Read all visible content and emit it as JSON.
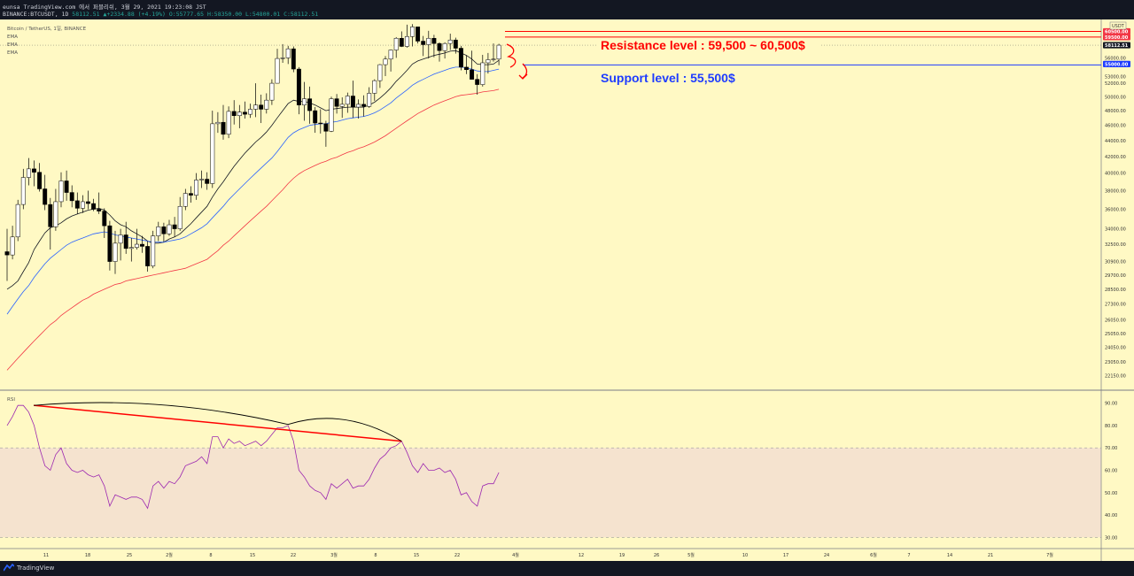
{
  "header": {
    "publisher": "eunsa TradingView.com 에서 퍼블리쉬, 3월 29, 2021 19:23:08 JST",
    "symbol": "BINANCE:BTCUSDT, 1D",
    "last": "58112.51",
    "change": "▲+2334.88 (+4.19%)",
    "ohlc": {
      "o": "O:55777.65",
      "h": "H:58350.00",
      "l": "L:54800.01",
      "c": "C:58112.51"
    }
  },
  "footer": {
    "brand": "TradingView"
  },
  "chart_data": [
    {
      "type": "line",
      "legend": [
        "Bitcoin / TetherUS, 1일, BINANCE",
        "EMA",
        "EMA",
        "EMA"
      ],
      "currency": "USDT",
      "ylim": [
        21500,
        62000
      ],
      "yticks": [
        "60500.00",
        "59500.00",
        "58112.51",
        "56000.00",
        "55000.00",
        "53000.00",
        "52000.00",
        "50000.00",
        "48000.00",
        "46000.00",
        "44000.00",
        "42000.00",
        "40000.00",
        "38000.00",
        "36000.00",
        "34000.00",
        "32500.00",
        "30900.00",
        "29700.00",
        "28500.00",
        "27300.00",
        "26050.00",
        "25050.00",
        "24050.00",
        "23050.00",
        "22150.00"
      ],
      "highlighted_ticks": [
        {
          "label": "60500.00",
          "value": 60500,
          "color": "#f23645"
        },
        {
          "label": "59500.00",
          "value": 59500,
          "color": "#f23645"
        },
        {
          "label": "58112.51",
          "value": 58112.51,
          "color": "#131722"
        },
        {
          "label": "55000.00",
          "value": 55000,
          "color": "#1e3cff"
        }
      ],
      "xticks": [
        "11",
        "18",
        "25",
        "2월",
        "8",
        "15",
        "22",
        "3월",
        "8",
        "15",
        "22",
        "4월",
        "12",
        "19",
        "26",
        "5월",
        "10",
        "17",
        "24",
        "6월",
        "7",
        "14",
        "21",
        "7월"
      ],
      "candles": [
        [
          31800,
          31500,
          34000,
          29200
        ],
        [
          31500,
          33200,
          34300,
          31100
        ],
        [
          33200,
          36500,
          37000,
          32800
        ],
        [
          36500,
          39500,
          40500,
          36000
        ],
        [
          39500,
          40500,
          41800,
          38600
        ],
        [
          40500,
          40100,
          41500,
          38500
        ],
        [
          40100,
          38200,
          41200,
          37900
        ],
        [
          38200,
          36500,
          39800,
          35900
        ],
        [
          36500,
          34200,
          37200,
          32000
        ],
        [
          34200,
          36800,
          38200,
          33800
        ],
        [
          36800,
          39100,
          40100,
          36200
        ],
        [
          39100,
          37800,
          40300,
          36900
        ],
        [
          37800,
          36900,
          38600,
          36200
        ],
        [
          36900,
          36100,
          37800,
          35500
        ],
        [
          36100,
          36800,
          37500,
          35600
        ],
        [
          36800,
          36600,
          38000,
          36000
        ],
        [
          36600,
          36000,
          37100,
          35800
        ],
        [
          36000,
          35800,
          37800,
          35500
        ],
        [
          35800,
          34300,
          36100,
          33100
        ],
        [
          34300,
          30900,
          34800,
          30100
        ],
        [
          30900,
          32600,
          33800,
          29800
        ],
        [
          32600,
          33400,
          34000,
          31000
        ],
        [
          33400,
          32100,
          34700,
          31600
        ],
        [
          32100,
          32200,
          33100,
          30900
        ],
        [
          32200,
          32500,
          34000,
          32000
        ],
        [
          32500,
          32300,
          33300,
          31700
        ],
        [
          32300,
          30500,
          32800,
          30000
        ],
        [
          30500,
          33300,
          33800,
          30300
        ],
        [
          33300,
          34200,
          34700,
          32800
        ],
        [
          34200,
          33500,
          34600,
          32700
        ],
        [
          33500,
          34400,
          34900,
          33300
        ],
        [
          34400,
          34000,
          35200,
          33200
        ],
        [
          34000,
          36300,
          37300,
          33800
        ],
        [
          36300,
          37700,
          38200,
          35900
        ],
        [
          37700,
          37500,
          38500,
          36700
        ],
        [
          37500,
          39200,
          40000,
          37000
        ],
        [
          39200,
          39300,
          40300,
          38300
        ],
        [
          39300,
          38800,
          40100,
          38100
        ],
        [
          38800,
          46200,
          48000,
          38300
        ],
        [
          46200,
          46400,
          47800,
          45000
        ],
        [
          46400,
          44800,
          48800,
          44100
        ],
        [
          44800,
          47900,
          48600,
          44300
        ],
        [
          47900,
          47300,
          49500,
          46100
        ],
        [
          47300,
          47800,
          48800,
          45600
        ],
        [
          47800,
          47500,
          49300,
          46900
        ],
        [
          47500,
          48200,
          49000,
          47000
        ],
        [
          48200,
          48800,
          52000,
          47100
        ],
        [
          48800,
          48200,
          50300,
          46300
        ],
        [
          48200,
          49500,
          50500,
          47600
        ],
        [
          49500,
          52000,
          52600,
          48800
        ],
        [
          52000,
          55900,
          57500,
          52000
        ],
        [
          55900,
          56000,
          58300,
          55200
        ],
        [
          56000,
          57500,
          58000,
          55000
        ],
        [
          57500,
          54200,
          57900,
          53700
        ],
        [
          54200,
          48800,
          54500,
          47500
        ],
        [
          48800,
          49700,
          52200,
          46600
        ],
        [
          49700,
          48000,
          51500,
          46200
        ],
        [
          48000,
          46300,
          48500,
          45000
        ],
        [
          46300,
          46200,
          48200,
          44900
        ],
        [
          46200,
          45200,
          46600,
          43200
        ],
        [
          45200,
          49700,
          50000,
          45100
        ],
        [
          49700,
          48600,
          50400,
          47600
        ],
        [
          48600,
          48900,
          49900,
          47000
        ],
        [
          48900,
          50100,
          50600,
          47700
        ],
        [
          50100,
          48500,
          52400,
          47000
        ],
        [
          48500,
          48900,
          49600,
          46900
        ],
        [
          48900,
          48600,
          50200,
          47200
        ],
        [
          48600,
          50500,
          51400,
          48400
        ],
        [
          50500,
          52400,
          52600,
          49400
        ],
        [
          52400,
          54900,
          55000,
          51300
        ],
        [
          54900,
          55800,
          56300,
          53100
        ],
        [
          55800,
          57300,
          57400,
          53800
        ],
        [
          57300,
          59300,
          59500,
          56000
        ],
        [
          59300,
          57900,
          60500,
          57800
        ],
        [
          57900,
          59600,
          61700,
          57700
        ],
        [
          59600,
          61300,
          61800,
          57900
        ],
        [
          61300,
          58800,
          61000,
          58400
        ],
        [
          58800,
          58200,
          59700,
          56300
        ],
        [
          58200,
          59300,
          60600,
          55900
        ],
        [
          59300,
          58400,
          59900,
          56100
        ],
        [
          58400,
          57200,
          58600,
          55400
        ],
        [
          57200,
          58400,
          58600,
          55900
        ],
        [
          58400,
          59000,
          60100,
          57300
        ],
        [
          59000,
          57600,
          59400,
          56700
        ],
        [
          57600,
          54500,
          58000,
          54000
        ],
        [
          54500,
          54100,
          56400,
          53400
        ],
        [
          54100,
          52600,
          57200,
          52600
        ],
        [
          52600,
          51800,
          53400,
          50300
        ],
        [
          51800,
          55200,
          56500,
          51500
        ],
        [
          55200,
          55700,
          56800,
          53500
        ],
        [
          55700,
          55800,
          58400,
          55400
        ],
        [
          55800,
          58112.51,
          58350,
          54800.01
        ]
      ],
      "series": [
        {
          "name": "",
          "color": "#131722",
          "values": [
            28500,
            28800,
            29200,
            30000,
            30800,
            32000,
            32800,
            33600,
            34100,
            34300,
            34600,
            35000,
            35300,
            35500,
            35700,
            35900,
            36000,
            36100,
            35900,
            35400,
            34800,
            34400,
            34200,
            33800,
            33500,
            33200,
            32800,
            32600,
            32600,
            32700,
            33000,
            33200,
            33500,
            34000,
            34500,
            35100,
            35700,
            36300,
            37300,
            38200,
            39000,
            39900,
            40800,
            41600,
            42400,
            43100,
            43800,
            44400,
            45100,
            46000,
            47000,
            48000,
            49000,
            49500,
            49300,
            49300,
            49100,
            48800,
            48400,
            48000,
            48200,
            48300,
            48400,
            48500,
            48500,
            48500,
            48500,
            48800,
            49200,
            49800,
            50500,
            51300,
            52300,
            53100,
            54000,
            55000,
            55500,
            55800,
            56100,
            56400,
            56600,
            56800,
            57100,
            57200,
            56800,
            56400,
            55800,
            55000,
            54900,
            54900,
            55000,
            55600
          ]
        },
        {
          "name": "",
          "color": "#2962ff",
          "values": [
            26500,
            27100,
            27700,
            28300,
            28800,
            29500,
            30100,
            30700,
            31200,
            31600,
            32000,
            32400,
            32700,
            32900,
            33100,
            33300,
            33500,
            33600,
            33700,
            33600,
            33400,
            33300,
            33200,
            33100,
            33000,
            32900,
            32800,
            32700,
            32700,
            32700,
            32800,
            32900,
            33000,
            33200,
            33500,
            33800,
            34100,
            34500,
            35100,
            35700,
            36300,
            37000,
            37600,
            38200,
            38800,
            39400,
            40000,
            40600,
            41200,
            41800,
            42600,
            43500,
            44400,
            45000,
            45400,
            45700,
            46000,
            46100,
            46200,
            46200,
            46400,
            46500,
            46700,
            46900,
            47000,
            47100,
            47200,
            47400,
            47700,
            48100,
            48600,
            49100,
            49800,
            50400,
            51000,
            51700,
            52200,
            52600,
            53000,
            53400,
            53700,
            54000,
            54300,
            54500,
            54500,
            54400,
            54200,
            53900,
            53800,
            53800,
            54000,
            54200
          ]
        },
        {
          "name": "",
          "color": "#f23645",
          "values": [
            22500,
            22900,
            23300,
            23700,
            24100,
            24500,
            24900,
            25300,
            25700,
            26000,
            26400,
            26700,
            27000,
            27300,
            27600,
            27800,
            28100,
            28300,
            28500,
            28700,
            28900,
            29000,
            29200,
            29300,
            29400,
            29500,
            29600,
            29700,
            29800,
            29900,
            30000,
            30100,
            30200,
            30300,
            30500,
            30700,
            30900,
            31100,
            31500,
            31900,
            32400,
            32800,
            33300,
            33800,
            34300,
            34800,
            35300,
            35800,
            36300,
            36900,
            37500,
            38100,
            38800,
            39400,
            39900,
            40300,
            40600,
            40900,
            41200,
            41400,
            41700,
            41900,
            42200,
            42500,
            42700,
            43000,
            43200,
            43500,
            43800,
            44200,
            44600,
            45100,
            45600,
            46100,
            46600,
            47100,
            47600,
            48000,
            48400,
            48800,
            49100,
            49400,
            49700,
            50000,
            50200,
            50300,
            50400,
            50500,
            50700,
            50800,
            50900,
            51100
          ]
        }
      ],
      "annotations": [
        {
          "text": "Resistance level : 59,500 ~ 60,500$",
          "color": "#ff0000"
        },
        {
          "text": "Support level : 55,500$",
          "color": "#1e3cff"
        }
      ]
    },
    {
      "type": "line",
      "legend": [
        "RSI"
      ],
      "ylim": [
        25,
        95
      ],
      "yticks": [
        "90.00",
        "80.00",
        "70.00",
        "60.00",
        "50.00",
        "40.00",
        "30.00"
      ],
      "band": [
        30,
        70
      ],
      "series": [
        {
          "name": "",
          "color": "#9c27b0",
          "values": [
            80,
            84,
            89,
            89,
            86,
            80,
            70,
            62,
            60,
            67,
            70,
            63,
            60,
            59,
            60,
            58,
            57,
            58,
            53,
            44,
            49,
            48,
            47,
            48,
            48,
            47,
            43,
            53,
            55,
            52,
            55,
            54,
            57,
            62,
            63,
            64,
            66,
            63,
            75,
            75,
            70,
            74,
            72,
            73,
            71,
            72,
            73,
            71,
            73,
            76,
            79,
            79,
            80,
            73,
            60,
            57,
            53,
            51,
            50,
            47,
            54,
            52,
            54,
            56,
            52,
            53,
            53,
            56,
            61,
            65,
            67,
            70,
            71,
            73,
            68,
            62,
            59,
            63,
            60,
            60,
            61,
            59,
            60,
            56,
            49,
            50,
            46,
            44,
            53,
            54,
            54,
            59
          ]
        }
      ],
      "annotations": [
        {
          "text": "",
          "color": "#ff0000",
          "from": [
            1,
            89
          ],
          "to": [
            73,
            73
          ]
        }
      ]
    }
  ]
}
